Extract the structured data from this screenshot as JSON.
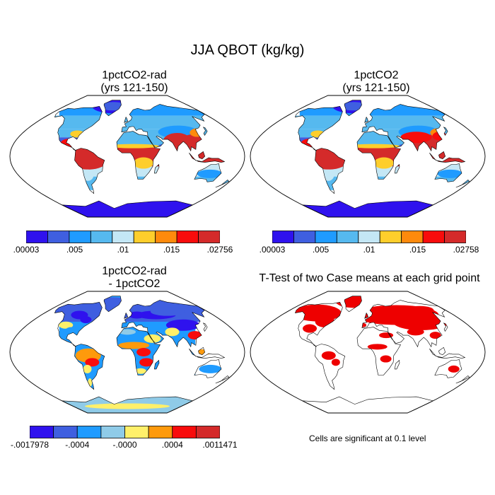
{
  "figure": {
    "title": "JJA QBOT (kg/kg)",
    "footnote": "Cells are significant at 0.1 level"
  },
  "panels": [
    {
      "id": "rad",
      "title_line1": "1pctCO2-rad",
      "title_line2": "(yrs 121-150)",
      "colorbar": {
        "colors": [
          "#2f12ee",
          "#3f5fe0",
          "#1f9bff",
          "#56b9ef",
          "#c4e7f5",
          "#fece2c",
          "#fe8a0c",
          "#f80c0c",
          "#d42a2a"
        ],
        "labels": [
          ".00003",
          ".005",
          ".01",
          ".015",
          ".02756"
        ]
      }
    },
    {
      "id": "ctl",
      "title_line1": "1pctCO2",
      "title_line2": "(yrs 121-150)",
      "colorbar": {
        "colors": [
          "#2f12ee",
          "#3f5fe0",
          "#1f9bff",
          "#56b9ef",
          "#c4e7f5",
          "#fece2c",
          "#fe8a0c",
          "#f80c0c",
          "#d42a2a"
        ],
        "labels": [
          ".00003",
          ".005",
          ".01",
          ".015",
          ".02758"
        ]
      }
    },
    {
      "id": "diff",
      "title_line1": "1pctCO2-rad",
      "title_line2": "- 1pctCO2",
      "colorbar": {
        "colors": [
          "#2f12ee",
          "#3f5fe0",
          "#1f9bff",
          "#8fcbe8",
          "#fff06a",
          "#fe9a0c",
          "#f80c0c",
          "#d42a2a"
        ],
        "labels": [
          "-.0017978",
          "-.0004",
          "-.0000",
          ".0004",
          ".0011471"
        ]
      }
    },
    {
      "id": "ttest",
      "title_line1": "T-Test of two Case means at each grid point",
      "title_line2": ""
    }
  ]
}
